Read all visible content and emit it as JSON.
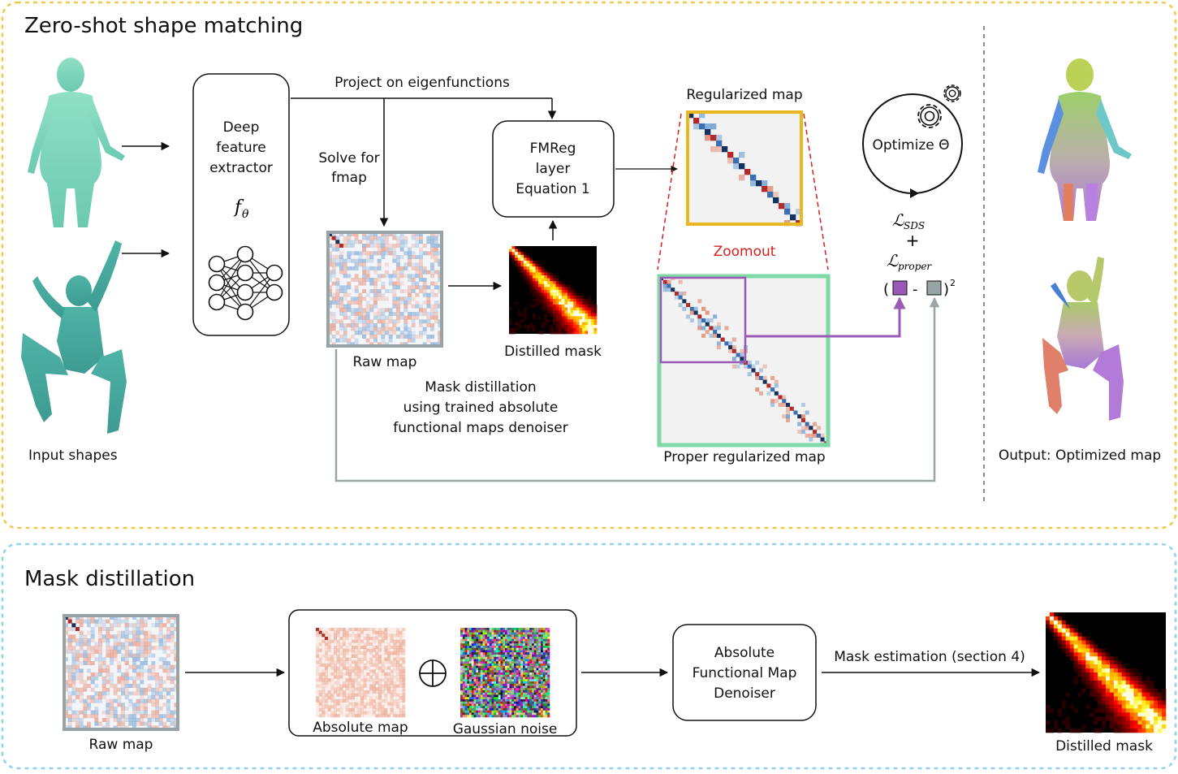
{
  "top_panel": {
    "title": "Zero-shot shape matching",
    "input_label": "Input shapes",
    "extractor": {
      "line1": "Deep",
      "line2": "feature",
      "line3": "extractor",
      "symbol": "f",
      "subscript": "θ"
    },
    "project_label": "Project on eigenfunctions",
    "solve_label_1": "Solve for",
    "solve_label_2": "fmap",
    "fmreg": {
      "line1": "FMReg",
      "line2": "layer",
      "line3": "Equation 1"
    },
    "regularized_label": "Regularized map",
    "zoomout_label": "Zoomout",
    "proper_label": "Proper regularized map",
    "raw_map_label": "Raw map",
    "distilled_mask_label": "Distilled mask",
    "mask_distill_text_1": "Mask distillation",
    "mask_distill_text_2": "using trained absolute",
    "mask_distill_text_3": "functional maps denoiser",
    "optimize_label": "Optimize Θ",
    "loss_sds": "ℒ",
    "loss_sds_sub": "SDS",
    "loss_plus": "+",
    "loss_proper": "ℒ",
    "loss_proper_sub": "proper",
    "loss_open": "(",
    "loss_minus": "-",
    "loss_close": ")",
    "loss_exp": "2",
    "output_label": "Output: Optimized map"
  },
  "bottom_panel": {
    "title": "Mask distillation",
    "raw_map_label": "Raw map",
    "absolute_map_label": "Absolute map",
    "noise_label": "Gaussian noise",
    "denoiser": {
      "line1": "Absolute",
      "line2": "Functional Map",
      "line3": "Denoiser"
    },
    "mask_estimation_label": "Mask estimation (section 4)",
    "distilled_mask_label": "Distilled mask"
  },
  "colors": {
    "top_border": "#f2c94c",
    "bottom_border": "#8fd3f0",
    "regularized_frame": "#e8b820",
    "proper_frame": "#7ed9a6",
    "raw_frame": "#98a4a4",
    "crop_box": "#9b59b6",
    "zoomout_red": "#d62020",
    "feedback_gray": "#9aa5a5"
  }
}
